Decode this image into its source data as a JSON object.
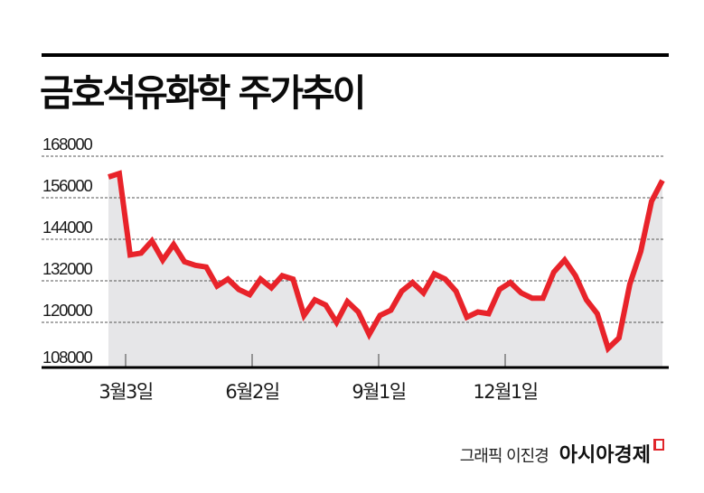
{
  "header": {
    "title": "금호석유화학 주가추이"
  },
  "credit": {
    "author": "그래픽 이진경",
    "brand": "아시아경제"
  },
  "colors": {
    "line": "#e8232a",
    "area": "#e6e6e8",
    "grid": "#555555",
    "axis": "#000000"
  },
  "chart_data": {
    "type": "area",
    "title": "금호석유화학 주가추이",
    "xlabel": "",
    "ylabel": "",
    "ylim": [
      108000,
      168000
    ],
    "y_ticks": [
      108000,
      120000,
      132000,
      144000,
      156000,
      168000
    ],
    "y_tick_labels": [
      "108000",
      "120000",
      "132000",
      "144000",
      "156000",
      "168000"
    ],
    "x_tick_labels": [
      "3월3일",
      "6월2일",
      "9월1일",
      "12월1일"
    ],
    "x_tick_positions": [
      4,
      14,
      25,
      36
    ],
    "grid": "horizontal dashed",
    "legend": "none",
    "series": [
      {
        "name": "주가",
        "values": [
          162000,
          163000,
          139500,
          140000,
          143500,
          138000,
          142500,
          137500,
          136500,
          136000,
          130500,
          132500,
          129500,
          128000,
          132500,
          130000,
          133500,
          132500,
          122000,
          126500,
          125000,
          120000,
          126000,
          123000,
          116500,
          122000,
          123500,
          129000,
          131500,
          128500,
          134000,
          132500,
          129000,
          121500,
          123000,
          122500,
          129500,
          131500,
          128500,
          127000,
          127000,
          134500,
          138000,
          133500,
          126500,
          122500,
          112500,
          115500,
          131000,
          140500,
          155000,
          161000
        ]
      }
    ]
  }
}
